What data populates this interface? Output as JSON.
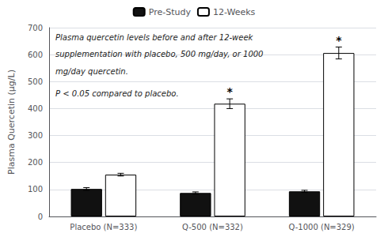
{
  "chart_data": {
    "type": "bar",
    "categories": [
      "Placebo (N=333)",
      "Q-500 (N=332)",
      "Q-1000 (N=329)"
    ],
    "series": [
      {
        "name": "Pre-Study",
        "color": "#111111",
        "values": [
          102,
          87,
          93
        ],
        "errors": [
          5,
          4,
          4
        ]
      },
      {
        "name": "12-Weeks",
        "color": "#ffffff",
        "values": [
          155,
          418,
          606
        ],
        "errors": [
          5,
          18,
          22
        ],
        "marks": [
          null,
          "*",
          "*"
        ]
      }
    ],
    "ylabel": "Plasma Quercetin (µg/L)",
    "ylim": [
      0,
      700
    ],
    "yticks": [
      0,
      100,
      200,
      300,
      400,
      500,
      600,
      700
    ],
    "grid": true,
    "legend": "top",
    "annotations": [
      "Plasma quercetin levels before and after 12-week",
      "supplementation with placebo, 500 mg/day, or 1000",
      "mg/day quercetin.",
      "P < 0.05 compared to placebo."
    ]
  }
}
